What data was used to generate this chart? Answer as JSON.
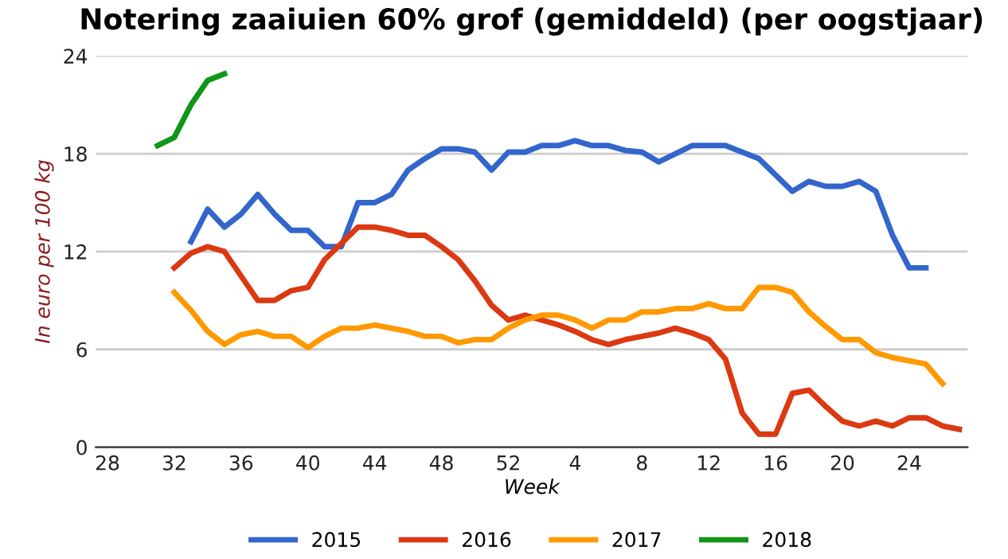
{
  "chart_data": {
    "type": "line",
    "title": "Notering zaaiuien 60% grof (gemiddeld) (per oogstjaar)",
    "xlabel": "Week",
    "ylabel": "In euro per 100 kg",
    "categories": [
      "28",
      null,
      null,
      null,
      "32",
      null,
      null,
      null,
      "36",
      null,
      null,
      null,
      "40",
      null,
      null,
      null,
      "44",
      null,
      null,
      null,
      "48",
      null,
      null,
      null,
      "52",
      null,
      null,
      null,
      "4",
      null,
      null,
      null,
      "8",
      null,
      null,
      null,
      "12",
      null,
      null,
      null,
      "16",
      null,
      null,
      null,
      "20",
      null,
      null,
      null,
      "24",
      null,
      null,
      null
    ],
    "ylim": [
      0,
      24
    ],
    "yticks": [
      0,
      6,
      12,
      18,
      24
    ],
    "grid": "y",
    "legend": "bottom",
    "line_style": "solid",
    "series": [
      {
        "name": "2015",
        "color": "#3366cc",
        "values": [
          null,
          null,
          null,
          null,
          null,
          12.6,
          14.6,
          13.5,
          14.3,
          15.5,
          14.3,
          13.3,
          13.3,
          12.3,
          12.3,
          15.0,
          15.0,
          15.5,
          17.0,
          17.7,
          18.3,
          18.3,
          18.1,
          17.0,
          18.1,
          18.1,
          18.5,
          18.5,
          18.8,
          18.5,
          18.5,
          18.2,
          18.1,
          17.5,
          18.0,
          18.5,
          18.5,
          18.5,
          18.1,
          17.7,
          16.7,
          15.7,
          16.3,
          16.0,
          16.0,
          16.3,
          15.7,
          13.0,
          11.0,
          11.0,
          null,
          null
        ]
      },
      {
        "name": "2016",
        "color": "#dc3912",
        "values": [
          null,
          null,
          null,
          null,
          11.0,
          11.9,
          12.3,
          12.0,
          10.5,
          9.0,
          9.0,
          9.6,
          9.8,
          11.5,
          12.5,
          13.5,
          13.5,
          13.3,
          13.0,
          13.0,
          12.3,
          11.5,
          10.2,
          8.7,
          7.8,
          8.1,
          7.8,
          7.5,
          7.1,
          6.6,
          6.3,
          6.6,
          6.8,
          7.0,
          7.3,
          7.0,
          6.6,
          5.4,
          2.1,
          0.8,
          0.8,
          3.3,
          3.5,
          2.5,
          1.6,
          1.3,
          1.6,
          1.3,
          1.8,
          1.8,
          1.3,
          1.1
        ]
      },
      {
        "name": "2017",
        "color": "#ff9900",
        "values": [
          null,
          null,
          null,
          null,
          9.5,
          8.4,
          7.1,
          6.3,
          6.9,
          7.1,
          6.8,
          6.8,
          6.1,
          6.8,
          7.3,
          7.3,
          7.5,
          7.3,
          7.1,
          6.8,
          6.8,
          6.4,
          6.6,
          6.6,
          7.3,
          7.8,
          8.1,
          8.1,
          7.8,
          7.3,
          7.8,
          7.8,
          8.3,
          8.3,
          8.5,
          8.5,
          8.8,
          8.5,
          8.5,
          9.8,
          9.8,
          9.5,
          8.3,
          7.4,
          6.6,
          6.6,
          5.8,
          5.5,
          5.3,
          5.1,
          3.9,
          null
        ]
      },
      {
        "name": "2018",
        "color": "#109618",
        "values": [
          null,
          null,
          null,
          18.5,
          19.0,
          21.0,
          22.5,
          22.9,
          null,
          null,
          null,
          null,
          null,
          null,
          null,
          null,
          null,
          null,
          null,
          null,
          null,
          null,
          null,
          null,
          null,
          null,
          null,
          null,
          null,
          null,
          null,
          null,
          null,
          null,
          null,
          null,
          null,
          null,
          null,
          null,
          null,
          null,
          null,
          null,
          null,
          null,
          null,
          null,
          null,
          null,
          null,
          null
        ]
      }
    ]
  }
}
